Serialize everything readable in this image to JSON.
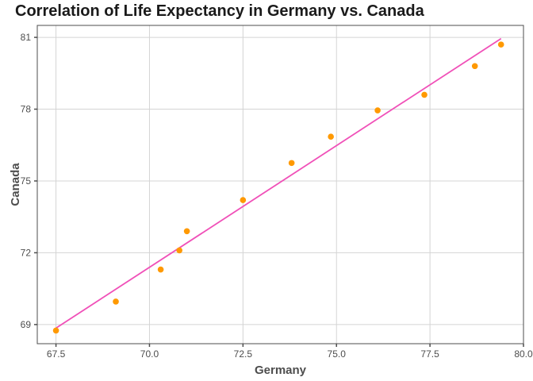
{
  "chart_data": {
    "type": "scatter",
    "title": "Correlation of Life Expectancy in Germany vs. Canada",
    "xlabel": "Germany",
    "ylabel": "Canada",
    "xlim": [
      67.0,
      80.0
    ],
    "ylim": [
      68.2,
      81.5
    ],
    "x_ticks": [
      67.5,
      70.0,
      72.5,
      75.0,
      77.5,
      80.0
    ],
    "x_tick_labels": [
      "67.5",
      "70.0",
      "72.5",
      "75.0",
      "77.5",
      "80.0"
    ],
    "y_ticks": [
      69,
      72,
      75,
      78,
      81
    ],
    "y_tick_labels": [
      "69",
      "72",
      "75",
      "78",
      "81"
    ],
    "grid": true,
    "points": [
      {
        "x": 67.5,
        "y": 68.75
      },
      {
        "x": 69.1,
        "y": 69.96
      },
      {
        "x": 70.3,
        "y": 71.3
      },
      {
        "x": 70.8,
        "y": 72.1
      },
      {
        "x": 71.0,
        "y": 72.9
      },
      {
        "x": 72.5,
        "y": 74.2
      },
      {
        "x": 73.8,
        "y": 75.75
      },
      {
        "x": 74.85,
        "y": 76.85
      },
      {
        "x": 76.1,
        "y": 77.95
      },
      {
        "x": 77.35,
        "y": 78.6
      },
      {
        "x": 78.7,
        "y": 79.8
      },
      {
        "x": 79.4,
        "y": 80.7
      }
    ],
    "trend_line": [
      {
        "x": 67.5,
        "y": 68.85
      },
      {
        "x": 79.4,
        "y": 80.95
      }
    ],
    "colors": {
      "points": "#ff9900",
      "trend_line": "#f050b8",
      "grid": "#d4d4d4",
      "panel_border": "#4d4d4d"
    }
  }
}
